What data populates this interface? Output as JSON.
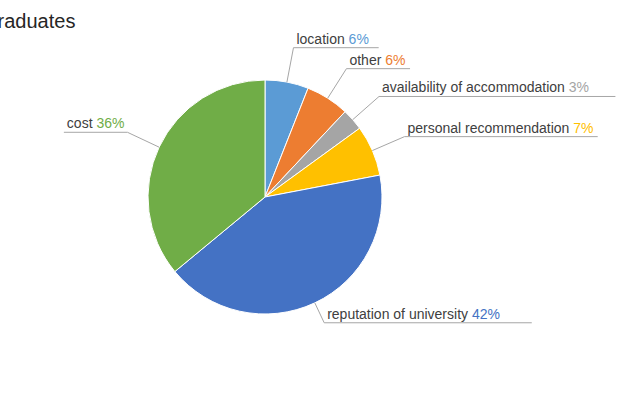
{
  "chart_data": {
    "type": "pie",
    "title": "postgraduates",
    "categories": [
      "location",
      "other",
      "availability of accommodation",
      "personal recommendation",
      "reputation of university",
      "cost"
    ],
    "values": [
      6,
      6,
      3,
      7,
      42,
      36
    ],
    "value_labels": [
      "6%",
      "6%",
      "3%",
      "7%",
      "42%",
      "36%"
    ],
    "colors": [
      "#5b9bd5",
      "#ed7d31",
      "#a5a5a5",
      "#ffc000",
      "#4472c4",
      "#70ad47"
    ],
    "data_labels": true
  }
}
